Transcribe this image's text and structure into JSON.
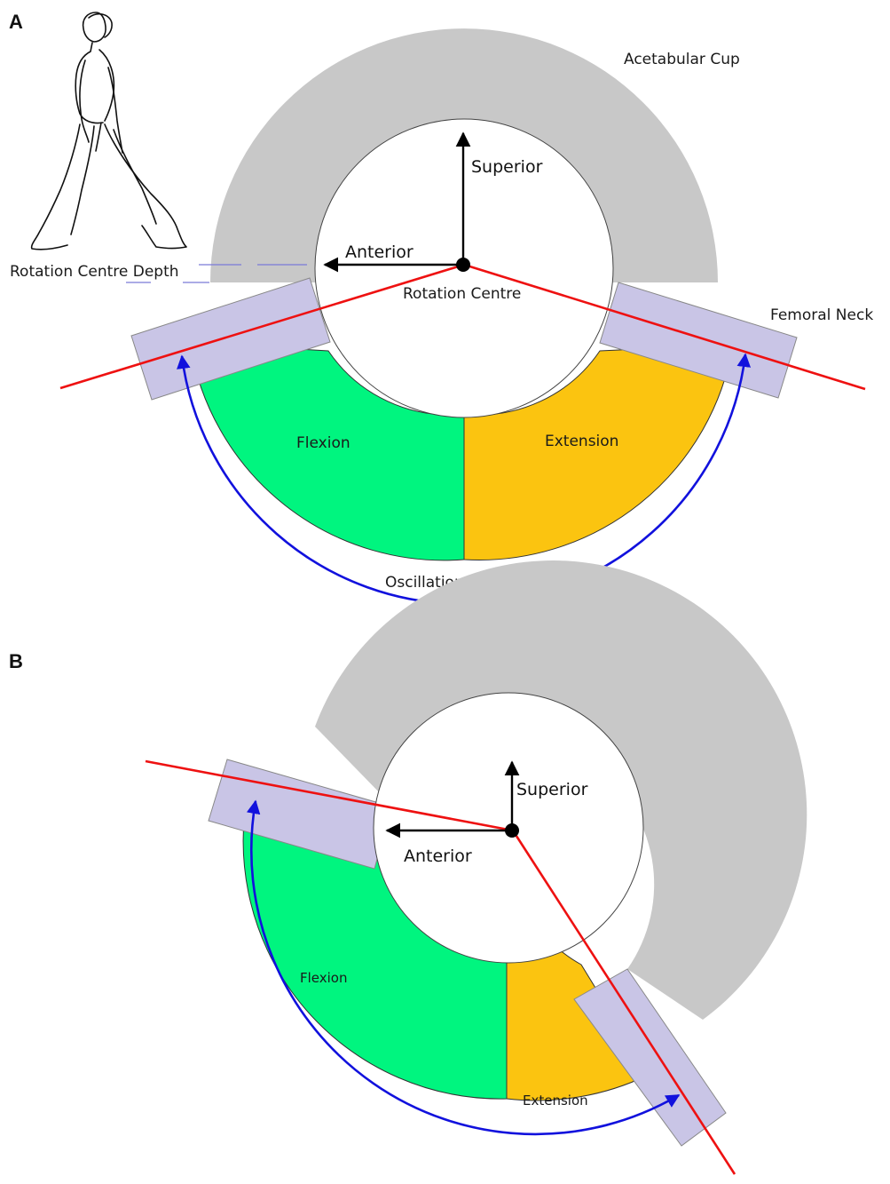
{
  "panels": {
    "a": {
      "panel_label": "A",
      "acetabular_cup": "Acetabular Cup",
      "superior": "Superior",
      "anterior": "Anterior",
      "rotation_centre": "Rotation Centre",
      "rotation_centre_depth": "Rotation Centre Depth",
      "femoral_neck": "Femoral Neck",
      "flexion": "Flexion",
      "extension": "Extension",
      "oscillation_angle": "Oscillation Angle (θ)"
    },
    "b": {
      "panel_label": "B",
      "superior": "Superior",
      "anterior": "Anterior",
      "flexion": "Flexion",
      "extension": "Extension"
    }
  },
  "colors": {
    "cup": "#c8c8c8",
    "neck": "#c9c5e6",
    "flexion": "#00f57f",
    "extension": "#fbc410",
    "neck_line": "#ee1111",
    "oscillation_arc": "#1111dd",
    "axis": "#000000"
  }
}
